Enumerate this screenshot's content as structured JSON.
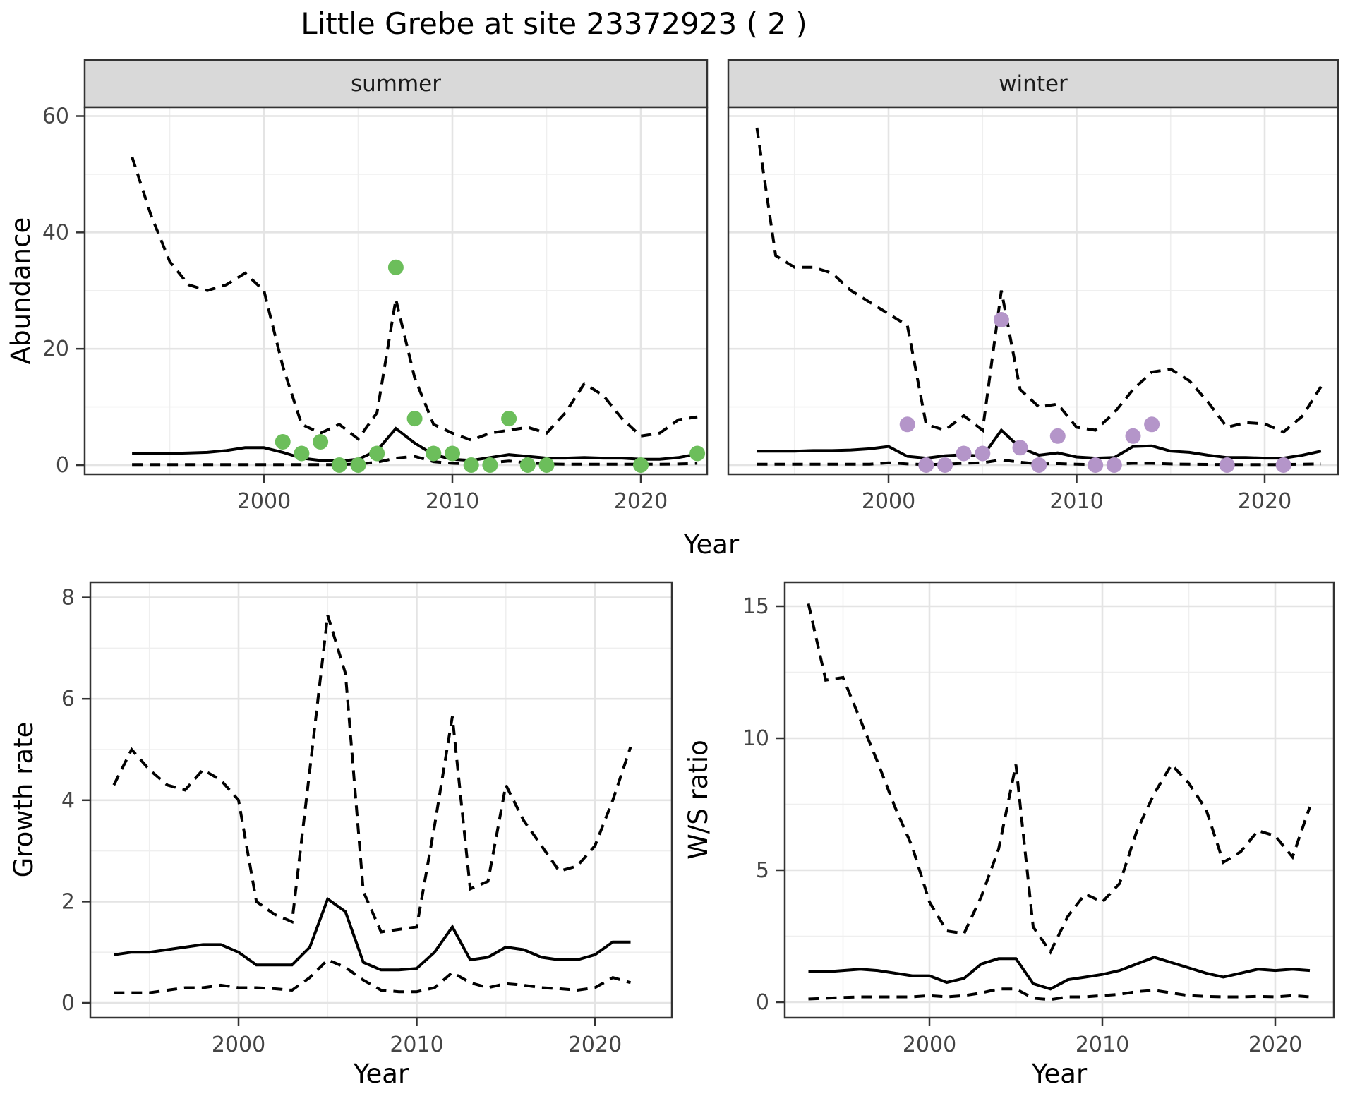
{
  "title": "Little Grebe at site 23372923 ( 2 )",
  "colors": {
    "summer_point": "#6cbe5b",
    "winter_point": "#b495c9",
    "line": "#000000",
    "strip_bg": "#d9d9d9",
    "panel_border": "#333333",
    "grid_major": "#e4e4e4",
    "grid_minor": "#efefef",
    "axis_text": "#444444"
  },
  "chart_data": [
    {
      "type": "line",
      "name": "abundance-by-season",
      "ylabel": "Abundance",
      "xlabel": "Year",
      "ylim": [
        0,
        60
      ],
      "yticks": [
        0,
        20,
        40,
        60
      ],
      "xticks": [
        2000,
        2010,
        2020
      ],
      "grid": "on",
      "legend": "none",
      "years": [
        1993,
        1994,
        1995,
        1996,
        1997,
        1998,
        1999,
        2000,
        2001,
        2002,
        2003,
        2004,
        2005,
        2006,
        2007,
        2008,
        2009,
        2010,
        2011,
        2012,
        2013,
        2014,
        2015,
        2016,
        2017,
        2018,
        2019,
        2020,
        2021,
        2022,
        2023
      ],
      "facets": [
        {
          "label": "summer",
          "point_color": "#6cbe5b",
          "series": [
            {
              "name": "upper-95ci",
              "linetype": "dashed",
              "values": [
                53,
                43,
                35,
                31,
                30,
                31,
                33,
                30,
                17,
                7,
                5.5,
                7,
                4.5,
                9,
                28.5,
                15,
                7,
                5.5,
                4.3,
                5.5,
                6,
                6.5,
                5.5,
                9,
                14,
                12,
                8,
                5,
                5.5,
                7.8,
                8.3
              ]
            },
            {
              "name": "median",
              "linetype": "solid",
              "values": [
                2,
                2,
                2,
                2.1,
                2.2,
                2.5,
                3,
                3,
                2.2,
                1.2,
                0.8,
                0.7,
                1,
                2.5,
                6.3,
                3.8,
                1.8,
                1,
                0.8,
                1.3,
                1.8,
                1.5,
                1.2,
                1.2,
                1.3,
                1.2,
                1.2,
                1,
                1,
                1.3,
                1.9
              ]
            },
            {
              "name": "lower-95ci",
              "linetype": "dashed",
              "values": [
                0.1,
                0.1,
                0.1,
                0.1,
                0.1,
                0.1,
                0.1,
                0.1,
                0.1,
                0.1,
                0.1,
                0.1,
                0.2,
                0.5,
                1.2,
                1.5,
                0.6,
                0.3,
                0.2,
                0.4,
                0.7,
                0.4,
                0.2,
                0.15,
                0.15,
                0.15,
                0.15,
                0.15,
                0.15,
                0.2,
                0.3
              ]
            }
          ],
          "points": [
            [
              2001,
              4
            ],
            [
              2002,
              2
            ],
            [
              2003,
              4
            ],
            [
              2004,
              0
            ],
            [
              2005,
              0
            ],
            [
              2006,
              2
            ],
            [
              2007,
              34
            ],
            [
              2008,
              8
            ],
            [
              2009,
              2
            ],
            [
              2010,
              2
            ],
            [
              2011,
              0
            ],
            [
              2012,
              0
            ],
            [
              2013,
              8
            ],
            [
              2014,
              0
            ],
            [
              2015,
              0
            ],
            [
              2020,
              0
            ],
            [
              2023,
              2
            ]
          ]
        },
        {
          "label": "winter",
          "point_color": "#b495c9",
          "series": [
            {
              "name": "upper-95ci",
              "linetype": "dashed",
              "values": [
                58,
                36,
                34,
                34,
                33,
                30,
                28,
                26,
                24,
                7,
                6,
                8.5,
                6,
                30,
                13,
                10,
                10.5,
                6.5,
                6,
                9,
                13,
                16,
                16.5,
                14.5,
                10.8,
                6.5,
                7.3,
                7.1,
                5.7,
                8.4,
                13.5
              ]
            },
            {
              "name": "median",
              "linetype": "solid",
              "values": [
                2.4,
                2.4,
                2.4,
                2.5,
                2.5,
                2.6,
                2.8,
                3.2,
                1.5,
                1.2,
                1.6,
                1.8,
                1.5,
                6,
                3,
                1.7,
                2.1,
                1.4,
                1.2,
                1.3,
                3.2,
                3.3,
                2.4,
                2.2,
                1.7,
                1.3,
                1.3,
                1.2,
                1.2,
                1.7,
                2.4
              ]
            },
            {
              "name": "lower-95ci",
              "linetype": "dashed",
              "values": [
                0.15,
                0.15,
                0.15,
                0.15,
                0.15,
                0.15,
                0.15,
                0.4,
                0.2,
                0.1,
                0.15,
                0.3,
                0.4,
                0.9,
                0.5,
                0.2,
                0.25,
                0.15,
                0.1,
                0.15,
                0.3,
                0.3,
                0.2,
                0.15,
                0.12,
                0.1,
                0.1,
                0.1,
                0.1,
                0.15,
                0.2
              ]
            }
          ],
          "points": [
            [
              2001,
              7
            ],
            [
              2002,
              0
            ],
            [
              2003,
              0
            ],
            [
              2004,
              2
            ],
            [
              2005,
              2
            ],
            [
              2006,
              25
            ],
            [
              2007,
              3
            ],
            [
              2008,
              0
            ],
            [
              2009,
              5
            ],
            [
              2011,
              0
            ],
            [
              2012,
              0
            ],
            [
              2013,
              5
            ],
            [
              2014,
              7
            ],
            [
              2018,
              0
            ],
            [
              2021,
              0
            ]
          ]
        }
      ]
    },
    {
      "type": "line",
      "name": "growth-rate",
      "ylabel": "Growth rate",
      "xlabel": "Year",
      "ylim": [
        0,
        8
      ],
      "yticks": [
        0,
        2,
        4,
        6,
        8
      ],
      "xticks": [
        2000,
        2010,
        2020
      ],
      "grid": "on",
      "legend": "none",
      "years": [
        1993,
        1994,
        1995,
        1996,
        1997,
        1998,
        1999,
        2000,
        2001,
        2002,
        2003,
        2004,
        2005,
        2006,
        2007,
        2008,
        2009,
        2010,
        2011,
        2012,
        2013,
        2014,
        2015,
        2016,
        2017,
        2018,
        2019,
        2020,
        2021,
        2022
      ],
      "series": [
        {
          "name": "upper-95ci",
          "linetype": "dashed",
          "values": [
            4.3,
            5.0,
            4.6,
            4.3,
            4.2,
            4.6,
            4.4,
            4.0,
            2.0,
            1.75,
            1.6,
            4.6,
            7.65,
            6.5,
            2.2,
            1.4,
            1.45,
            1.5,
            3.5,
            5.65,
            2.25,
            2.4,
            4.3,
            3.6,
            3.1,
            2.6,
            2.7,
            3.1,
            4.0,
            5.05
          ]
        },
        {
          "name": "median",
          "linetype": "solid",
          "values": [
            0.95,
            1.0,
            1.0,
            1.05,
            1.1,
            1.15,
            1.15,
            1.0,
            0.75,
            0.75,
            0.75,
            1.1,
            2.05,
            1.8,
            0.8,
            0.65,
            0.65,
            0.68,
            1.0,
            1.5,
            0.85,
            0.9,
            1.1,
            1.05,
            0.9,
            0.85,
            0.85,
            0.95,
            1.2,
            1.2
          ]
        },
        {
          "name": "lower-95ci",
          "linetype": "dashed",
          "values": [
            0.2,
            0.2,
            0.2,
            0.25,
            0.3,
            0.3,
            0.35,
            0.3,
            0.3,
            0.28,
            0.25,
            0.5,
            0.85,
            0.7,
            0.45,
            0.25,
            0.22,
            0.22,
            0.3,
            0.6,
            0.4,
            0.3,
            0.38,
            0.35,
            0.3,
            0.28,
            0.25,
            0.3,
            0.5,
            0.4
          ]
        }
      ]
    },
    {
      "type": "line",
      "name": "winter-summer-ratio",
      "ylabel": "W/S ratio",
      "xlabel": "Year",
      "ylim": [
        0,
        15
      ],
      "yticks": [
        0,
        5,
        10,
        15
      ],
      "xticks": [
        2000,
        2010,
        2020
      ],
      "grid": "on",
      "legend": "none",
      "years": [
        1993,
        1994,
        1995,
        1996,
        1997,
        1998,
        1999,
        2000,
        2001,
        2002,
        2003,
        2004,
        2005,
        2006,
        2007,
        2008,
        2009,
        2010,
        2011,
        2012,
        2013,
        2014,
        2015,
        2016,
        2017,
        2018,
        2019,
        2020,
        2021,
        2022
      ],
      "series": [
        {
          "name": "upper-95ci",
          "linetype": "dashed",
          "values": [
            15.1,
            12.2,
            12.3,
            10.7,
            9.1,
            7.4,
            5.9,
            3.8,
            2.7,
            2.6,
            4.0,
            5.8,
            9.0,
            2.85,
            1.9,
            3.25,
            4.1,
            3.8,
            4.5,
            6.5,
            7.9,
            9.0,
            8.3,
            7.3,
            5.3,
            5.7,
            6.5,
            6.3,
            5.5,
            7.4
          ]
        },
        {
          "name": "median",
          "linetype": "solid",
          "values": [
            1.15,
            1.15,
            1.2,
            1.25,
            1.2,
            1.1,
            1.0,
            1.0,
            0.75,
            0.9,
            1.45,
            1.65,
            1.65,
            0.7,
            0.5,
            0.85,
            0.95,
            1.05,
            1.2,
            1.45,
            1.7,
            1.5,
            1.3,
            1.1,
            0.95,
            1.1,
            1.25,
            1.2,
            1.25,
            1.2
          ]
        },
        {
          "name": "lower-95ci",
          "linetype": "dashed",
          "values": [
            0.12,
            0.15,
            0.18,
            0.2,
            0.2,
            0.2,
            0.2,
            0.25,
            0.2,
            0.25,
            0.35,
            0.5,
            0.5,
            0.15,
            0.1,
            0.2,
            0.2,
            0.25,
            0.3,
            0.4,
            0.45,
            0.35,
            0.25,
            0.22,
            0.2,
            0.2,
            0.22,
            0.2,
            0.25,
            0.2
          ]
        }
      ]
    }
  ]
}
